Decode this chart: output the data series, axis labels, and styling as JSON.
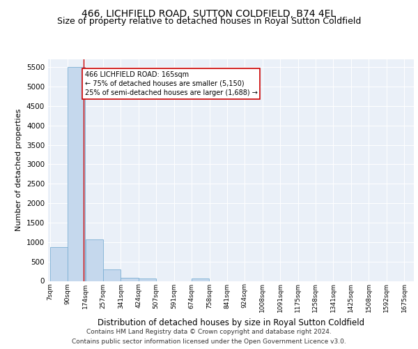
{
  "title1": "466, LICHFIELD ROAD, SUTTON COLDFIELD, B74 4EL",
  "title2": "Size of property relative to detached houses in Royal Sutton Coldfield",
  "xlabel": "Distribution of detached houses by size in Royal Sutton Coldfield",
  "ylabel": "Number of detached properties",
  "footnote1": "Contains HM Land Registry data © Crown copyright and database right 2024.",
  "footnote2": "Contains public sector information licensed under the Open Government Licence v3.0.",
  "bin_labels": [
    "7sqm",
    "90sqm",
    "174sqm",
    "257sqm",
    "341sqm",
    "424sqm",
    "507sqm",
    "591sqm",
    "674sqm",
    "758sqm",
    "841sqm",
    "924sqm",
    "1008sqm",
    "1091sqm",
    "1175sqm",
    "1258sqm",
    "1341sqm",
    "1425sqm",
    "1508sqm",
    "1592sqm",
    "1675sqm"
  ],
  "bin_edges": [
    7,
    90,
    174,
    257,
    341,
    424,
    507,
    591,
    674,
    758,
    841,
    924,
    1008,
    1091,
    1175,
    1258,
    1341,
    1425,
    1508,
    1592,
    1675
  ],
  "bar_values": [
    870,
    5500,
    1060,
    290,
    80,
    60,
    0,
    0,
    60,
    0,
    0,
    0,
    0,
    0,
    0,
    0,
    0,
    0,
    0,
    0
  ],
  "bar_color": "#c5d8ed",
  "bar_edge_color": "#7bafd4",
  "property_size": 165,
  "vline_color": "#cc0000",
  "annotation_line1": "466 LICHFIELD ROAD: 165sqm",
  "annotation_line2": "← 75% of detached houses are smaller (5,150)",
  "annotation_line3": "25% of semi-detached houses are larger (1,688) →",
  "annotation_box_color": "#ffffff",
  "annotation_box_edge": "#cc0000",
  "ylim": [
    0,
    5700
  ],
  "yticks": [
    0,
    500,
    1000,
    1500,
    2000,
    2500,
    3000,
    3500,
    4000,
    4500,
    5000,
    5500
  ],
  "bg_color": "#eaf0f8",
  "fig_bg": "#ffffff",
  "title1_fontsize": 10,
  "title2_fontsize": 9,
  "xlabel_fontsize": 8.5,
  "ylabel_fontsize": 8
}
